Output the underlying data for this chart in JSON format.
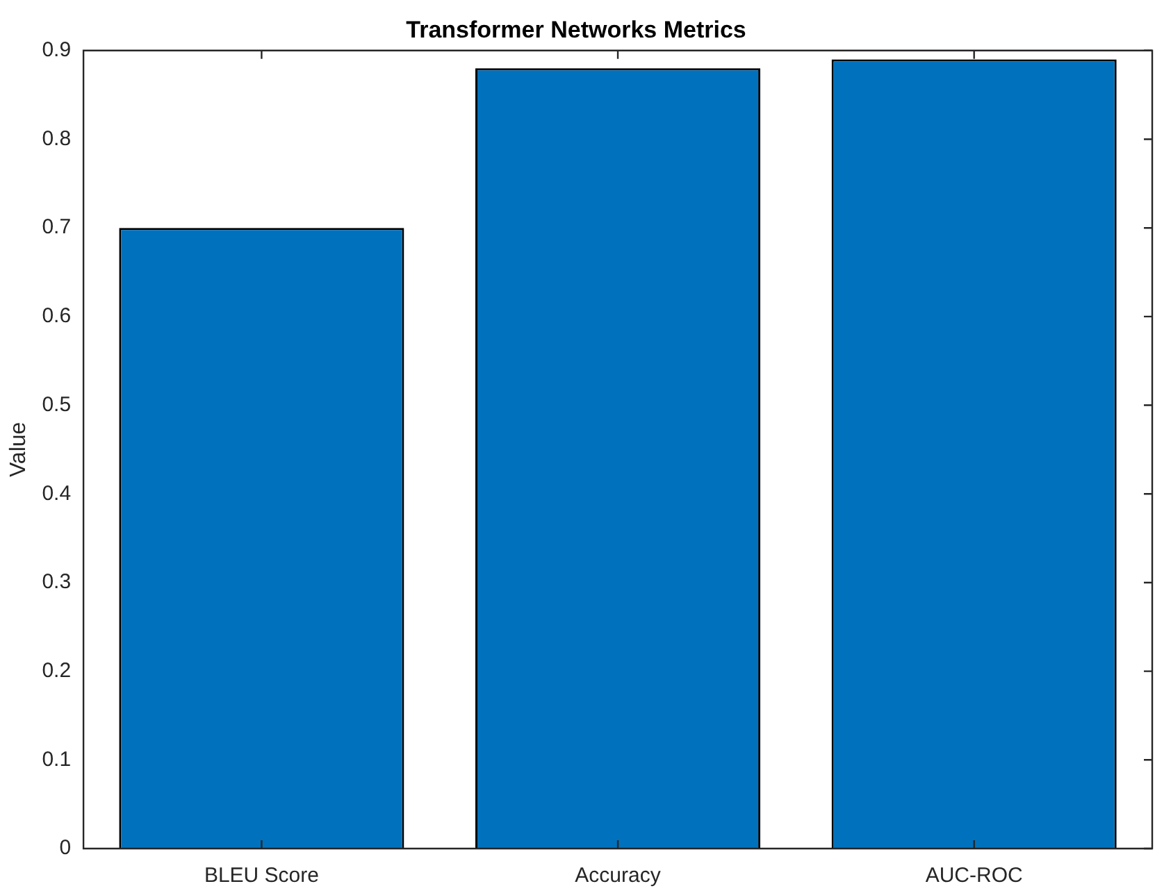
{
  "chart_data": {
    "type": "bar",
    "title": "Transformer Networks Metrics",
    "ylabel": "Value",
    "categories": [
      "BLEU Score",
      "Accuracy",
      "AUC-ROC"
    ],
    "values": [
      0.7,
      0.88,
      0.89
    ],
    "color": "#0072bd",
    "ylim": [
      0,
      0.9
    ],
    "yticks": [
      0,
      0.1,
      0.2,
      0.3,
      0.4,
      0.5,
      0.6,
      0.7,
      0.8,
      0.9
    ]
  }
}
